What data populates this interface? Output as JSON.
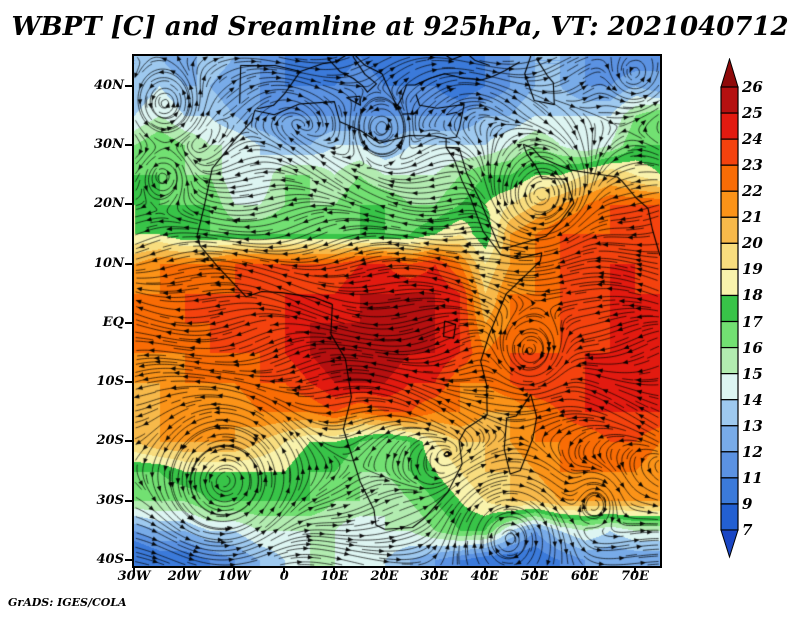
{
  "title": "WBPT [C] and Sreamline at 925hPa, VT: 2021040712",
  "attribution": "GrADS: IGES/COLA",
  "colorbar": {
    "labels_top_to_bottom": [
      "26",
      "25",
      "24",
      "23",
      "22",
      "21",
      "20",
      "19",
      "18",
      "17",
      "16",
      "15",
      "14",
      "13",
      "12",
      "11",
      "9",
      "7"
    ],
    "segment_colors_top_to_bottom": [
      "#b51010",
      "#e21a10",
      "#f4420e",
      "#f96c05",
      "#fb9318",
      "#f7b94a",
      "#f8dd7e",
      "#f9f3ac",
      "#38c448",
      "#72e072",
      "#b2ecb0",
      "#ddf5f2",
      "#9ec9ef",
      "#78abe8",
      "#5b92e2",
      "#3b7ada",
      "#2360d2"
    ],
    "arrow_top_color": "#8f0a0a",
    "arrow_bottom_color": "#1a46c4"
  },
  "axes": {
    "lat_ticks": [
      {
        "label": "40N",
        "value": 40
      },
      {
        "label": "30N",
        "value": 30
      },
      {
        "label": "20N",
        "value": 20
      },
      {
        "label": "10N",
        "value": 10
      },
      {
        "label": "EQ",
        "value": 0
      },
      {
        "label": "10S",
        "value": -10
      },
      {
        "label": "20S",
        "value": -20
      },
      {
        "label": "30S",
        "value": -30
      },
      {
        "label": "40S",
        "value": -40
      }
    ],
    "lon_ticks": [
      {
        "label": "30W",
        "value": -30
      },
      {
        "label": "20W",
        "value": -20
      },
      {
        "label": "10W",
        "value": -10
      },
      {
        "label": "0",
        "value": 0
      },
      {
        "label": "10E",
        "value": 10
      },
      {
        "label": "20E",
        "value": 20
      },
      {
        "label": "30E",
        "value": 30
      },
      {
        "label": "40E",
        "value": 40
      },
      {
        "label": "50E",
        "value": 50
      },
      {
        "label": "60E",
        "value": 60
      },
      {
        "label": "70E",
        "value": 70
      }
    ]
  },
  "chart_data": {
    "type": "heatmap",
    "title": "WBPT [C] and Sreamline at 925hPa, VT: 2021040712",
    "variable": "WBPT",
    "units": "C",
    "overlay": "streamlines",
    "pressure_level": "925hPa",
    "valid_time": "2021040712",
    "lon_range": [
      -30,
      75
    ],
    "lat_range": [
      -41,
      45
    ],
    "contour_levels": [
      7,
      9,
      11,
      12,
      13,
      14,
      15,
      16,
      17,
      18,
      19,
      20,
      21,
      22,
      23,
      24,
      25,
      26
    ],
    "level_colors_low_to_high": [
      "#1a46c4",
      "#2360d2",
      "#3b7ada",
      "#5b92e2",
      "#78abe8",
      "#9ec9ef",
      "#ddf5f2",
      "#b2ecb0",
      "#72e072",
      "#38c448",
      "#f9f3ac",
      "#f8dd7e",
      "#f7b94a",
      "#fb9318",
      "#f96c05",
      "#f4420e",
      "#e21a10",
      "#b51010",
      "#8f0a0a"
    ],
    "grid_lons": [
      -30,
      -25,
      -20,
      -15,
      -10,
      -5,
      0,
      5,
      10,
      15,
      20,
      25,
      30,
      35,
      40,
      45,
      50,
      55,
      60,
      65,
      70,
      75
    ],
    "grid_lats_n_to_s": [
      45,
      40,
      35,
      30,
      25,
      20,
      15,
      10,
      5,
      0,
      -5,
      -10,
      -15,
      -20,
      -25,
      -30,
      -35,
      -40
    ],
    "wbpt_values_n_to_s": [
      [
        13,
        13,
        12,
        14,
        13,
        12,
        11,
        10,
        10,
        11,
        10,
        9,
        10,
        10,
        11,
        12,
        13,
        13,
        12,
        11,
        11,
        12
      ],
      [
        13,
        14,
        13,
        13,
        12,
        12,
        11,
        11,
        11,
        12,
        11,
        11,
        11,
        10,
        11,
        12,
        13,
        13,
        12,
        12,
        13,
        12
      ],
      [
        14,
        15,
        14,
        14,
        13,
        12,
        12,
        12,
        12,
        12,
        12,
        12,
        12,
        12,
        13,
        13,
        14,
        14,
        14,
        14,
        16,
        17
      ],
      [
        16,
        17,
        16,
        15,
        15,
        14,
        13,
        13,
        14,
        14,
        13,
        14,
        14,
        14,
        14,
        15,
        16,
        15,
        14,
        15,
        17,
        17
      ],
      [
        17,
        17,
        16,
        16,
        14,
        14,
        16,
        16,
        15,
        16,
        15,
        15,
        15,
        16,
        17,
        17,
        18,
        18,
        19,
        20,
        19,
        18
      ],
      [
        18,
        17,
        17,
        17,
        15,
        15,
        16,
        16,
        16,
        17,
        17,
        16,
        16,
        17,
        18,
        19,
        20,
        21,
        22,
        23,
        23,
        23
      ],
      [
        18,
        18,
        17,
        17,
        17,
        17,
        17,
        17,
        17,
        17,
        17,
        17,
        18,
        19,
        17,
        21,
        22,
        23,
        23,
        23,
        24,
        24
      ],
      [
        21,
        22,
        22,
        22,
        23,
        23,
        23,
        23,
        23,
        24,
        24,
        23,
        24,
        22,
        19,
        21,
        22,
        23,
        23,
        24,
        24,
        23
      ],
      [
        22,
        22,
        23,
        23,
        23,
        23,
        24,
        24,
        24,
        25,
        25,
        25,
        25,
        24,
        20,
        22,
        22,
        23,
        23,
        24,
        24,
        24
      ],
      [
        22,
        23,
        23,
        23,
        23,
        24,
        24,
        25,
        25,
        25,
        25,
        25,
        25,
        24,
        21,
        22,
        22,
        23,
        23,
        24,
        24,
        24
      ],
      [
        22,
        22,
        22,
        23,
        23,
        23,
        24,
        25,
        26,
        26,
        26,
        25,
        25,
        24,
        22,
        23,
        23,
        23,
        24,
        24,
        24,
        24
      ],
      [
        21,
        21,
        22,
        22,
        22,
        23,
        23,
        24,
        25,
        25,
        25,
        24,
        24,
        22,
        22,
        23,
        24,
        24,
        24,
        24,
        24,
        24
      ],
      [
        20,
        21,
        21,
        21,
        21,
        22,
        22,
        22,
        23,
        22,
        23,
        23,
        22,
        22,
        21,
        21,
        22,
        23,
        24,
        24,
        24,
        24
      ],
      [
        20,
        21,
        21,
        21,
        21,
        20,
        19,
        18,
        18,
        17,
        16,
        17,
        19,
        20,
        20,
        21,
        22,
        22,
        22,
        23,
        23,
        22
      ],
      [
        17,
        17,
        18,
        18,
        18,
        18,
        18,
        17,
        17,
        16,
        16,
        17,
        18,
        19,
        20,
        20,
        21,
        22,
        22,
        22,
        22,
        21
      ],
      [
        16,
        16,
        16,
        17,
        17,
        17,
        17,
        17,
        16,
        16,
        15,
        16,
        17,
        18,
        19,
        20,
        20,
        21,
        21,
        21,
        21,
        21
      ],
      [
        12,
        13,
        13,
        14,
        14,
        15,
        15,
        15,
        15,
        14,
        15,
        15,
        16,
        17,
        17,
        14,
        12,
        14,
        15,
        14,
        15,
        15
      ],
      [
        9,
        10,
        10,
        11,
        12,
        13,
        14,
        15,
        15,
        15,
        14,
        13,
        12,
        11,
        10,
        10,
        10,
        11,
        12,
        12,
        12,
        12
      ]
    ],
    "streamline_vortices": [
      {
        "lon": -24,
        "lat": 37,
        "rotation": "ccw",
        "strength": 2.2,
        "radius_deg": 5
      },
      {
        "lon": -24,
        "lat": 25,
        "rotation": "ccw",
        "strength": 1.5,
        "radius_deg": 4
      },
      {
        "lon": 19,
        "lat": 33,
        "rotation": "ccw",
        "strength": 1.4,
        "radius_deg": 4
      },
      {
        "lon": 70,
        "lat": 42,
        "rotation": "ccw",
        "strength": 1.8,
        "radius_deg": 4
      },
      {
        "lon": 51,
        "lat": 21,
        "rotation": "cw",
        "strength": 1.4,
        "radius_deg": 7
      },
      {
        "lon": 49,
        "lat": -5,
        "rotation": "cw",
        "strength": 2.2,
        "radius_deg": 5
      },
      {
        "lon": 45,
        "lat": -36,
        "rotation": "cw",
        "strength": 3.2,
        "radius_deg": 8
      },
      {
        "lon": 62,
        "lat": -30,
        "rotation": "cw",
        "strength": 1.8,
        "radius_deg": 4
      },
      {
        "lon": -12,
        "lat": -27,
        "rotation": "ccw",
        "strength": 1.6,
        "radius_deg": 9
      }
    ],
    "zonal_flow_profile": [
      [
        45,
        0.9
      ],
      [
        38,
        0.4
      ],
      [
        30,
        -0.3
      ],
      [
        22,
        -0.8
      ],
      [
        12,
        -1.2
      ],
      [
        0,
        -1.0
      ],
      [
        -10,
        -1.0
      ],
      [
        -18,
        -0.6
      ],
      [
        -24,
        0.0
      ],
      [
        -30,
        0.8
      ],
      [
        -36,
        1.5
      ],
      [
        -41,
        1.8
      ]
    ],
    "coastlines": {
      "africa": [
        [
          -5.9,
          35.8
        ],
        [
          -2,
          35.1
        ],
        [
          3,
          36.9
        ],
        [
          10,
          37.3
        ],
        [
          11.1,
          33.9
        ],
        [
          15.3,
          32.4
        ],
        [
          19,
          30.3
        ],
        [
          25,
          31.6
        ],
        [
          30,
          31.5
        ],
        [
          32.3,
          31.1
        ],
        [
          32.3,
          29.6
        ],
        [
          33.9,
          27.6
        ],
        [
          35.5,
          23.9
        ],
        [
          37.2,
          21
        ],
        [
          38.5,
          18
        ],
        [
          39.7,
          15.4
        ],
        [
          43.2,
          11.5
        ],
        [
          46.5,
          10.8
        ],
        [
          51.4,
          11.8
        ],
        [
          51.1,
          10.4
        ],
        [
          44.3,
          4.9
        ],
        [
          40.9,
          -2
        ],
        [
          39.2,
          -6.5
        ],
        [
          40.4,
          -10.5
        ],
        [
          40.5,
          -15.5
        ],
        [
          36.2,
          -17.9
        ],
        [
          34.9,
          -19.9
        ],
        [
          35.5,
          -23.8
        ],
        [
          32.6,
          -28.6
        ],
        [
          27.9,
          -33
        ],
        [
          25.6,
          -34.5
        ],
        [
          20,
          -34.8
        ],
        [
          18.3,
          -34.1
        ],
        [
          17.9,
          -31.5
        ],
        [
          15.1,
          -26.7
        ],
        [
          11.8,
          -17.9
        ],
        [
          13.4,
          -12.5
        ],
        [
          12.2,
          -6.1
        ],
        [
          9.3,
          -1.9
        ],
        [
          9.6,
          3.1
        ],
        [
          5.9,
          4.3
        ],
        [
          -0.5,
          5.1
        ],
        [
          -4.5,
          5.3
        ],
        [
          -7.6,
          4.4
        ],
        [
          -13.3,
          9.5
        ],
        [
          -16.8,
          13
        ],
        [
          -17.4,
          14.7
        ],
        [
          -16,
          19.6
        ],
        [
          -14.4,
          26
        ],
        [
          -9.6,
          31.1
        ],
        [
          -6.5,
          34
        ],
        [
          -5.9,
          35.8
        ]
      ],
      "arabia": [
        [
          32.3,
          29.6
        ],
        [
          34.9,
          29.5
        ],
        [
          36.5,
          25
        ],
        [
          39,
          20.8
        ],
        [
          43,
          12.6
        ],
        [
          45.1,
          12.8
        ],
        [
          52.2,
          14.6
        ],
        [
          55.1,
          17
        ],
        [
          57.8,
          20.2
        ],
        [
          56.3,
          24.2
        ],
        [
          54.2,
          24.3
        ],
        [
          51.5,
          24.3
        ],
        [
          50.2,
          26.4
        ],
        [
          48.4,
          28.5
        ],
        [
          47.7,
          30.1
        ]
      ],
      "iran_india": [
        [
          47.7,
          30.1
        ],
        [
          49.5,
          29.5
        ],
        [
          51.2,
          27.9
        ],
        [
          54.4,
          26.7
        ],
        [
          57,
          25.8
        ],
        [
          61.6,
          25.2
        ],
        [
          66.5,
          24.6
        ],
        [
          67.5,
          23.8
        ],
        [
          70.2,
          21.1
        ],
        [
          72.6,
          19.3
        ],
        [
          73.5,
          15.7
        ],
        [
          75,
          11.3
        ]
      ],
      "iberia": [
        [
          -8.9,
          37
        ],
        [
          -8.7,
          43.4
        ],
        [
          -1.8,
          43.4
        ],
        [
          3.2,
          42.4
        ],
        [
          0.2,
          38.8
        ],
        [
          -2.1,
          36.7
        ],
        [
          -5.4,
          36.1
        ]
      ],
      "italy": [
        [
          3.2,
          42.4
        ],
        [
          7.6,
          43.7
        ],
        [
          10.1,
          44
        ],
        [
          13.5,
          45.7
        ],
        [
          13.8,
          44.8
        ],
        [
          16.1,
          41.9
        ],
        [
          18.4,
          40.3
        ],
        [
          16.6,
          38.9
        ],
        [
          15.6,
          40
        ],
        [
          13.8,
          41.2
        ],
        [
          11.1,
          42.4
        ],
        [
          8.9,
          44.4
        ]
      ],
      "sicily": [
        [
          12.4,
          38
        ],
        [
          15.1,
          38.2
        ],
        [
          15.2,
          36.7
        ],
        [
          12.4,
          38
        ]
      ],
      "balkans": [
        [
          13.6,
          45.6
        ],
        [
          16,
          43.5
        ],
        [
          19.5,
          42
        ],
        [
          21,
          39.2
        ],
        [
          22.5,
          36.5
        ],
        [
          23.5,
          38
        ],
        [
          24.4,
          40.1
        ],
        [
          26.1,
          40.1
        ],
        [
          29,
          41.2
        ],
        [
          32,
          42
        ],
        [
          36,
          41.2
        ],
        [
          39.5,
          41
        ],
        [
          41.5,
          41.5
        ],
        [
          44,
          42.5
        ],
        [
          47,
          44
        ]
      ],
      "turkey_levant": [
        [
          26.3,
          38.5
        ],
        [
          27,
          36.7
        ],
        [
          30.5,
          36.2
        ],
        [
          34,
          36.6
        ],
        [
          35.9,
          36.8
        ],
        [
          35,
          33
        ],
        [
          34.3,
          31.3
        ],
        [
          32.3,
          31.1
        ]
      ],
      "black_sea_north": [
        [
          28.6,
          44.3
        ],
        [
          30.7,
          46
        ],
        [
          33.5,
          44.4
        ],
        [
          36.5,
          45.4
        ],
        [
          38,
          44.3
        ],
        [
          41,
          43.4
        ]
      ],
      "caspian": [
        [
          49.2,
          45
        ],
        [
          48,
          42
        ],
        [
          49.9,
          37.5
        ],
        [
          53.9,
          36.8
        ],
        [
          53.7,
          40.5
        ],
        [
          52.5,
          41.7
        ],
        [
          50.3,
          44.6
        ]
      ],
      "madagascar": [
        [
          44.2,
          -16.1
        ],
        [
          46.3,
          -15.7
        ],
        [
          49.2,
          -12.1
        ],
        [
          50.4,
          -15.9
        ],
        [
          49.6,
          -19.5
        ],
        [
          47.1,
          -24.9
        ],
        [
          45.1,
          -25.5
        ],
        [
          43.9,
          -21.3
        ],
        [
          44.4,
          -16.1
        ]
      ],
      "lake_victoria": [
        [
          32,
          0.3
        ],
        [
          34.2,
          -0.3
        ],
        [
          33.8,
          -2.6
        ],
        [
          31.8,
          -2.3
        ],
        [
          32,
          0.3
        ]
      ],
      "crete": [
        [
          23.6,
          35.2
        ],
        [
          26.2,
          35.3
        ]
      ],
      "cyprus": [
        [
          32.3,
          35.1
        ],
        [
          34.5,
          35.5
        ]
      ]
    }
  }
}
